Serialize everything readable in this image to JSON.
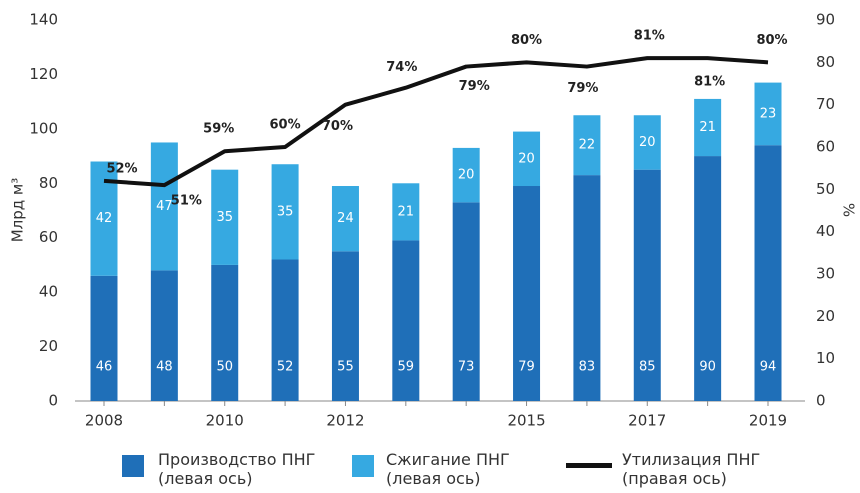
{
  "chart_data": {
    "type": "bar",
    "categories": [
      "2008",
      null,
      "2010",
      null,
      "2012",
      null,
      null,
      "2015",
      null,
      "2017",
      null,
      "2019"
    ],
    "stacked": true,
    "ylabel": "Млрд м³",
    "y2label": "%",
    "ylim": [
      0,
      140
    ],
    "yticks": [
      0,
      20,
      40,
      60,
      80,
      100,
      120,
      140
    ],
    "y2lim": [
      0,
      90
    ],
    "y2ticks": [
      0,
      10,
      20,
      30,
      40,
      50,
      60,
      70,
      80,
      90
    ],
    "series": [
      {
        "name": "Производство ПНГ (левая ось)",
        "color": "#1f6fb8",
        "values": [
          46,
          48,
          50,
          52,
          55,
          59,
          73,
          79,
          83,
          85,
          90,
          94
        ]
      },
      {
        "name": "Сжигание ПНГ (левая ось)",
        "color": "#36a9e1",
        "values": [
          42,
          47,
          35,
          35,
          24,
          21,
          20,
          20,
          22,
          20,
          21,
          23
        ]
      },
      {
        "name": "Утилизация ПНГ (правая ось)",
        "color": "#111111",
        "type": "line",
        "axis": "y2",
        "values": [
          52,
          51,
          59,
          60,
          70,
          74,
          79,
          80,
          79,
          81,
          81,
          80
        ],
        "value_labels": [
          "52%",
          "51%",
          "59%",
          "60%",
          "70%",
          "74%",
          "79%",
          "80%",
          "79%",
          "81%",
          "81%",
          "80%"
        ]
      }
    ]
  }
}
